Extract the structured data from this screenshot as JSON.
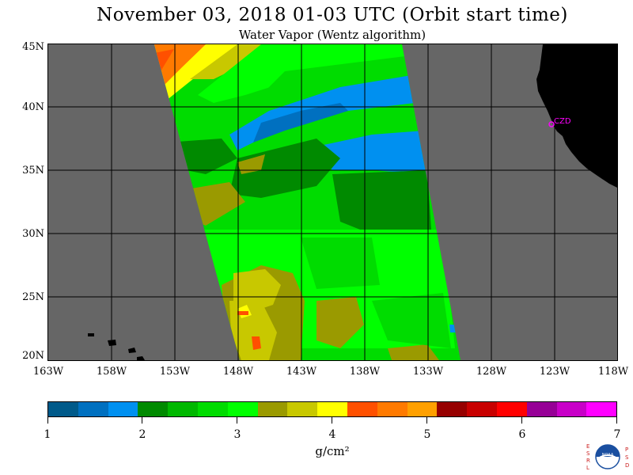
{
  "title": "November 03, 2018  01-03 UTC  (Orbit start time)",
  "subtitle": "Water Vapor (Wentz algorithm)",
  "map": {
    "lat_labels": [
      "45N",
      "40N",
      "35N",
      "30N",
      "25N",
      "20N"
    ],
    "lon_labels": [
      "163W",
      "158W",
      "153W",
      "148W",
      "143W",
      "138W",
      "133W",
      "128W",
      "123W",
      "118W"
    ],
    "station_label": "CZD",
    "colors": {
      "background_no_data": "#666666",
      "land": "#000000",
      "grid": "#000000",
      "station": "#ff00ff"
    }
  },
  "colorbar": {
    "colors": [
      "#005a8a",
      "#0070c0",
      "#0090f0",
      "#008a00",
      "#00b800",
      "#00dc00",
      "#00ff00",
      "#9a9a00",
      "#c8c800",
      "#ffff00",
      "#ff5000",
      "#ff7a00",
      "#ffa000",
      "#960000",
      "#c80000",
      "#ff0000",
      "#960096",
      "#c800c8",
      "#ff00ff"
    ],
    "tick_labels": [
      "1",
      "2",
      "3",
      "4",
      "5",
      "6",
      "7"
    ],
    "units": "g/cm²"
  },
  "logo": {
    "left_letters": [
      "E",
      "S",
      "R",
      "L"
    ],
    "right_letters": [
      "P",
      "S",
      "D"
    ],
    "center_text": "NOAA"
  }
}
